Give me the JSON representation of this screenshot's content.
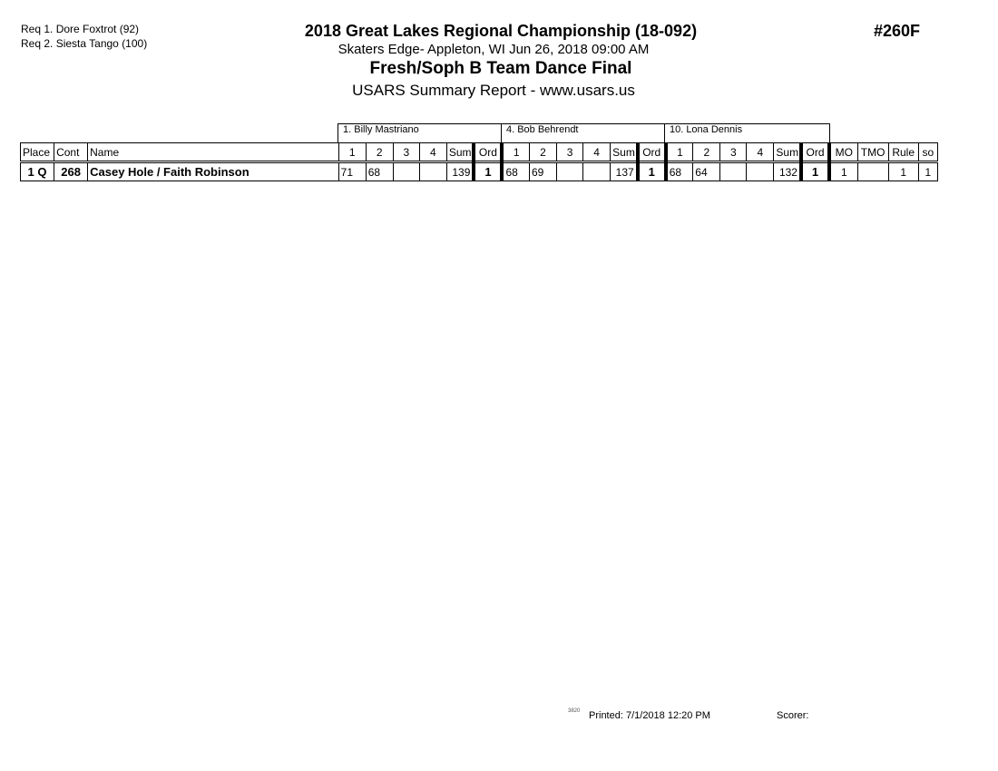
{
  "header": {
    "requirements": [
      "Req 1.  Dore Foxtrot (92)",
      "Req 2.  Siesta Tango (100)"
    ],
    "title": "2018 Great Lakes Regional Championship (18-092)",
    "location": "Skaters Edge- Appleton, WI  Jun 26, 2018  09:00 AM",
    "event": "Fresh/Soph B Team Dance Final",
    "report": "USARS Summary Report - www.usars.us",
    "event_number": "#260F"
  },
  "judges": [
    "1.  Billy Mastriano",
    "4.  Bob Behrendt",
    "10.  Lona Dennis"
  ],
  "columns": {
    "place": "Place",
    "cont": "Cont",
    "name": "Name",
    "scores": [
      "1",
      "2",
      "3",
      "4"
    ],
    "sum": "Sum",
    "ord": "Ord",
    "mo": "MO",
    "tmo": "TMO",
    "rule": "Rule",
    "so": "so"
  },
  "rows": [
    {
      "place": "1 Q",
      "cont": "268",
      "name": "Casey Hole / Faith Robinson",
      "judges": [
        {
          "scores": [
            "71",
            "68",
            "",
            ""
          ],
          "sum": "139",
          "ord": "1"
        },
        {
          "scores": [
            "68",
            "69",
            "",
            ""
          ],
          "sum": "137",
          "ord": "1"
        },
        {
          "scores": [
            "68",
            "64",
            "",
            ""
          ],
          "sum": "132",
          "ord": "1"
        }
      ],
      "mo": "1",
      "tmo": "",
      "rule": "1",
      "so": "1"
    }
  ],
  "footer": {
    "code": "3820",
    "printed": "Printed:  7/1/2018  12:20 PM",
    "scorer": "Scorer:"
  }
}
